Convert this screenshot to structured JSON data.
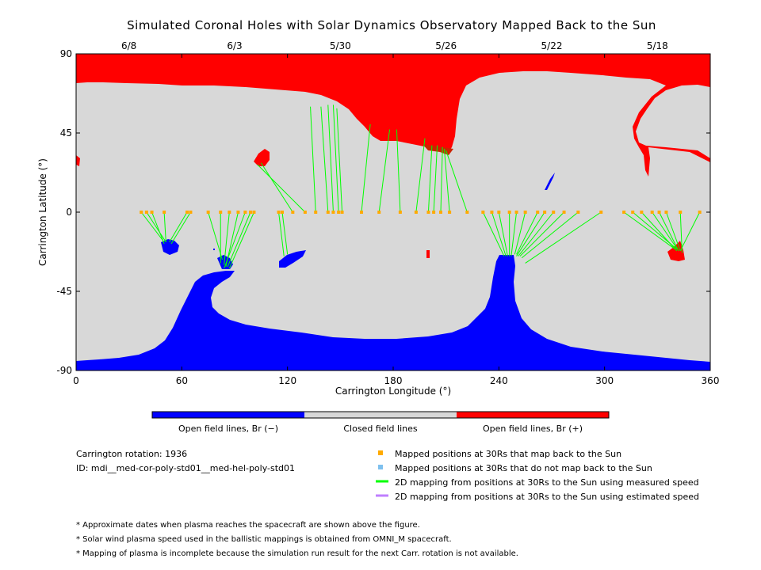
{
  "chart_data": {
    "type": "map",
    "title": "Simulated Coronal Holes with Solar Dynamics Observatory Mapped Back to the Sun",
    "xlabel": "Carrington Longitude (°)",
    "ylabel": "Carrington Latitude (°)",
    "xlim": [
      0,
      360
    ],
    "ylim": [
      -90,
      90
    ],
    "x_ticks": [
      "0",
      "60",
      "120",
      "180",
      "240",
      "300",
      "360"
    ],
    "y_ticks": [
      "90",
      "45",
      "0",
      "-45",
      "-90"
    ],
    "top_dates": [
      {
        "label": "6/8",
        "lon": 30
      },
      {
        "label": "6/3",
        "lon": 90
      },
      {
        "label": "5/30",
        "lon": 150
      },
      {
        "label": "5/26",
        "lon": 210
      },
      {
        "label": "5/22",
        "lon": 270
      },
      {
        "label": "5/18",
        "lon": 330
      }
    ],
    "colorbar": [
      {
        "label": "Open field lines, Br (−)",
        "color": "#0000ff"
      },
      {
        "label": "Closed field lines",
        "color": "#d8d8d8"
      },
      {
        "label": "Open field lines, Br (+)",
        "color": "#ff0000"
      }
    ],
    "mappings": [
      {
        "from": [
          37,
          0
        ],
        "to": [
          50,
          -17
        ]
      },
      {
        "from": [
          40,
          0
        ],
        "to": [
          51,
          -17
        ]
      },
      {
        "from": [
          43,
          0
        ],
        "to": [
          50,
          -18
        ]
      },
      {
        "from": [
          50,
          0
        ],
        "to": [
          51,
          -17
        ]
      },
      {
        "from": [
          63,
          0
        ],
        "to": [
          53,
          -17
        ]
      },
      {
        "from": [
          65,
          0
        ],
        "to": [
          54,
          -18
        ]
      },
      {
        "from": [
          75,
          0
        ],
        "to": [
          83,
          -27
        ]
      },
      {
        "from": [
          82,
          0
        ],
        "to": [
          82,
          -29
        ]
      },
      {
        "from": [
          87,
          0
        ],
        "to": [
          84,
          -30
        ]
      },
      {
        "from": [
          92,
          0
        ],
        "to": [
          85,
          -31
        ]
      },
      {
        "from": [
          96,
          0
        ],
        "to": [
          84,
          -32
        ]
      },
      {
        "from": [
          99,
          0
        ],
        "to": [
          86,
          -31
        ]
      },
      {
        "from": [
          101,
          0
        ],
        "to": [
          87,
          -32
        ]
      },
      {
        "from": [
          115,
          0
        ],
        "to": [
          118,
          -25
        ]
      },
      {
        "from": [
          117,
          0
        ],
        "to": [
          120,
          -24
        ]
      },
      {
        "from": [
          123,
          0
        ],
        "to": [
          105,
          28
        ]
      },
      {
        "from": [
          130,
          0
        ],
        "to": [
          103,
          27
        ]
      },
      {
        "from": [
          136,
          0
        ],
        "to": [
          133,
          60
        ]
      },
      {
        "from": [
          143,
          0
        ],
        "to": [
          139,
          60
        ]
      },
      {
        "from": [
          146,
          0
        ],
        "to": [
          143,
          61
        ]
      },
      {
        "from": [
          149,
          0
        ],
        "to": [
          146,
          61
        ]
      },
      {
        "from": [
          151,
          0
        ],
        "to": [
          148,
          59
        ]
      },
      {
        "from": [
          162,
          0
        ],
        "to": [
          167,
          50
        ]
      },
      {
        "from": [
          172,
          0
        ],
        "to": [
          178,
          47
        ]
      },
      {
        "from": [
          184,
          0
        ],
        "to": [
          182,
          47
        ]
      },
      {
        "from": [
          193,
          0
        ],
        "to": [
          198,
          42
        ]
      },
      {
        "from": [
          200,
          0
        ],
        "to": [
          202,
          38
        ]
      },
      {
        "from": [
          203,
          0
        ],
        "to": [
          205,
          38
        ]
      },
      {
        "from": [
          207,
          0
        ],
        "to": [
          208,
          37
        ]
      },
      {
        "from": [
          212,
          0
        ],
        "to": [
          209,
          36
        ]
      },
      {
        "from": [
          222,
          0
        ],
        "to": [
          210,
          35
        ]
      },
      {
        "from": [
          231,
          0
        ],
        "to": [
          243,
          -25
        ]
      },
      {
        "from": [
          236,
          0
        ],
        "to": [
          244,
          -25
        ]
      },
      {
        "from": [
          240,
          0
        ],
        "to": [
          245,
          -25
        ]
      },
      {
        "from": [
          246,
          0
        ],
        "to": [
          246,
          -25
        ]
      },
      {
        "from": [
          250,
          0
        ],
        "to": [
          247,
          -25
        ]
      },
      {
        "from": [
          255,
          0
        ],
        "to": [
          249,
          -24
        ]
      },
      {
        "from": [
          262,
          0
        ],
        "to": [
          250,
          -24
        ]
      },
      {
        "from": [
          266,
          0
        ],
        "to": [
          250,
          -25
        ]
      },
      {
        "from": [
          271,
          0
        ],
        "to": [
          251,
          -25
        ]
      },
      {
        "from": [
          277,
          0
        ],
        "to": [
          252,
          -25
        ]
      },
      {
        "from": [
          285,
          0
        ],
        "to": [
          253,
          -26
        ]
      },
      {
        "from": [
          298,
          0
        ],
        "to": [
          255,
          -29
        ]
      },
      {
        "from": [
          311,
          0
        ],
        "to": [
          340,
          -21
        ]
      },
      {
        "from": [
          316,
          0
        ],
        "to": [
          341,
          -21
        ]
      },
      {
        "from": [
          321,
          0
        ],
        "to": [
          341,
          -22
        ]
      },
      {
        "from": [
          327,
          0
        ],
        "to": [
          342,
          -22
        ]
      },
      {
        "from": [
          331,
          0
        ],
        "to": [
          342,
          -22
        ]
      },
      {
        "from": [
          335,
          0
        ],
        "to": [
          343,
          -22
        ]
      },
      {
        "from": [
          343,
          0
        ],
        "to": [
          344,
          -23
        ]
      },
      {
        "from": [
          354,
          0
        ],
        "to": [
          343,
          -22
        ]
      }
    ],
    "info": {
      "rotation_label": "Carrington rotation: 1936",
      "id_label": "ID: mdi__med-cor-poly-std01__med-hel-poly-std01"
    },
    "legend": [
      {
        "label": "Mapped positions at 30Rs that map back to the Sun",
        "color": "#ffaa00",
        "kind": "square"
      },
      {
        "label": "Mapped positions at 30Rs that do not map back to the Sun",
        "color": "#7ec0ee",
        "kind": "square"
      },
      {
        "label": "2D mapping from positions at 30Rs to the Sun using measured speed",
        "color": "#00ff00",
        "kind": "line"
      },
      {
        "label": "2D mapping from positions at 30Rs to the Sun using estimated speed",
        "color": "#bf7fff",
        "kind": "line"
      }
    ],
    "notes": [
      "* Approximate dates when plasma reaches the spacecraft are shown above the figure.",
      "* Solar wind plasma speed used in the ballistic mappings is obtained from OMNI_M spacecraft.",
      "* Mapping of plasma is incomplete because the simulation run result for the next Carr. rotation is not available."
    ]
  }
}
